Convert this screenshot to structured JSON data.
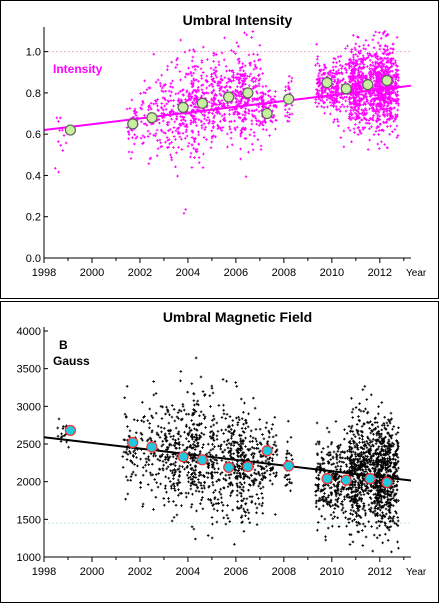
{
  "chart_data": [
    {
      "type": "scatter",
      "title": "Umbral Intensity",
      "annotation": "Intensity",
      "xunit_label": "Year",
      "xlim": [
        1998,
        2013.3
      ],
      "ylim": [
        0.0,
        1.1
      ],
      "xticks": [
        1998,
        2000,
        2002,
        2004,
        2006,
        2008,
        2010,
        2012
      ],
      "yticks": [
        0.0,
        0.2,
        0.4,
        0.6,
        0.8,
        1.0
      ],
      "ytick_labels": [
        "0.0",
        "0.2",
        "0.4",
        "0.6",
        "0.8",
        "1.0"
      ],
      "reference_line": 1.0,
      "colors": {
        "points": "#ff00ff",
        "fit": "#ff00ff",
        "means_fill": "#c8f0a0",
        "means_edge": "#606060",
        "reference": "#f0b0d0"
      },
      "fit": {
        "x": [
          1998,
          2013.3
        ],
        "y": [
          0.62,
          0.835
        ]
      },
      "clusters": [
        {
          "x": 1998.7,
          "y": 0.6,
          "spread": 0.06,
          "n": 12,
          "width": 0.3
        },
        {
          "x": 2001.7,
          "y": 0.65,
          "spread": 0.08,
          "n": 40,
          "width": 0.3
        },
        {
          "x": 2002.5,
          "y": 0.69,
          "spread": 0.1,
          "n": 70,
          "width": 0.6
        },
        {
          "x": 2003.6,
          "y": 0.72,
          "spread": 0.12,
          "n": 220,
          "width": 0.9
        },
        {
          "x": 2004.6,
          "y": 0.74,
          "spread": 0.12,
          "n": 160,
          "width": 0.6
        },
        {
          "x": 2005.7,
          "y": 0.79,
          "spread": 0.1,
          "n": 260,
          "width": 0.9
        },
        {
          "x": 2006.6,
          "y": 0.78,
          "spread": 0.1,
          "n": 180,
          "width": 0.7
        },
        {
          "x": 2007.4,
          "y": 0.72,
          "spread": 0.06,
          "n": 70,
          "width": 0.4
        },
        {
          "x": 2008.2,
          "y": 0.76,
          "spread": 0.06,
          "n": 30,
          "width": 0.2
        },
        {
          "x": 2009.8,
          "y": 0.83,
          "spread": 0.06,
          "n": 180,
          "width": 0.6
        },
        {
          "x": 2010.6,
          "y": 0.82,
          "spread": 0.09,
          "n": 180,
          "width": 0.7
        },
        {
          "x": 2011.6,
          "y": 0.83,
          "spread": 0.1,
          "n": 700,
          "width": 1.1
        },
        {
          "x": 2012.3,
          "y": 0.83,
          "spread": 0.1,
          "n": 350,
          "width": 0.6
        }
      ],
      "means": [
        {
          "x": 1999.1,
          "y": 0.62
        },
        {
          "x": 2001.7,
          "y": 0.65
        },
        {
          "x": 2002.5,
          "y": 0.68
        },
        {
          "x": 2003.8,
          "y": 0.73
        },
        {
          "x": 2004.6,
          "y": 0.75
        },
        {
          "x": 2005.7,
          "y": 0.78
        },
        {
          "x": 2006.5,
          "y": 0.8
        },
        {
          "x": 2007.3,
          "y": 0.7
        },
        {
          "x": 2008.2,
          "y": 0.77
        },
        {
          "x": 2009.8,
          "y": 0.85
        },
        {
          "x": 2010.6,
          "y": 0.82
        },
        {
          "x": 2011.5,
          "y": 0.84
        },
        {
          "x": 2012.3,
          "y": 0.86
        }
      ]
    },
    {
      "type": "scatter",
      "title": "Umbral Magnetic Field",
      "annotation": "B",
      "annotation_sub": "Gauss",
      "xunit_label": "Year",
      "xlim": [
        1998,
        2013.3
      ],
      "ylim": [
        1000,
        4000
      ],
      "xticks": [
        1998,
        2000,
        2002,
        2004,
        2006,
        2008,
        2010,
        2012
      ],
      "yticks": [
        1000,
        1500,
        2000,
        2500,
        3000,
        3500,
        4000
      ],
      "ytick_labels": [
        "1000",
        "1500",
        "2000",
        "2500",
        "3000",
        "3500",
        "4000"
      ],
      "reference_line": 1450,
      "colors": {
        "points": "#000000",
        "fit": "#000000",
        "means_fill": "#20c8e0",
        "means_edge": "#ff3030",
        "reference": "#bfe6ee"
      },
      "fit": {
        "x": [
          1998,
          2013.3
        ],
        "y": [
          2590,
          2015
        ]
      },
      "clusters": [
        {
          "x": 1998.8,
          "y": 2620,
          "spread": 120,
          "n": 15,
          "width": 0.3
        },
        {
          "x": 2001.6,
          "y": 2450,
          "spread": 300,
          "n": 60,
          "width": 0.4
        },
        {
          "x": 2002.5,
          "y": 2450,
          "spread": 350,
          "n": 90,
          "width": 0.6
        },
        {
          "x": 2003.7,
          "y": 2400,
          "spread": 400,
          "n": 240,
          "width": 0.9
        },
        {
          "x": 2004.6,
          "y": 2350,
          "spread": 380,
          "n": 150,
          "width": 0.6
        },
        {
          "x": 2005.7,
          "y": 2250,
          "spread": 400,
          "n": 260,
          "width": 0.9
        },
        {
          "x": 2006.6,
          "y": 2200,
          "spread": 380,
          "n": 170,
          "width": 0.7
        },
        {
          "x": 2007.4,
          "y": 2350,
          "spread": 300,
          "n": 70,
          "width": 0.4
        },
        {
          "x": 2008.2,
          "y": 2200,
          "spread": 200,
          "n": 30,
          "width": 0.2
        },
        {
          "x": 2009.8,
          "y": 2050,
          "spread": 280,
          "n": 180,
          "width": 0.6
        },
        {
          "x": 2010.6,
          "y": 2050,
          "spread": 320,
          "n": 180,
          "width": 0.7
        },
        {
          "x": 2011.6,
          "y": 2150,
          "spread": 380,
          "n": 700,
          "width": 1.1
        },
        {
          "x": 2012.3,
          "y": 2050,
          "spread": 330,
          "n": 350,
          "width": 0.6
        }
      ],
      "means": [
        {
          "x": 1999.1,
          "y": 2680
        },
        {
          "x": 2001.7,
          "y": 2520
        },
        {
          "x": 2002.5,
          "y": 2460
        },
        {
          "x": 2003.8,
          "y": 2330
        },
        {
          "x": 2004.6,
          "y": 2290
        },
        {
          "x": 2005.7,
          "y": 2190
        },
        {
          "x": 2006.5,
          "y": 2200
        },
        {
          "x": 2007.3,
          "y": 2410
        },
        {
          "x": 2008.2,
          "y": 2210
        },
        {
          "x": 2009.8,
          "y": 2040
        },
        {
          "x": 2010.6,
          "y": 2020
        },
        {
          "x": 2011.6,
          "y": 2040
        },
        {
          "x": 2012.3,
          "y": 1990
        }
      ]
    }
  ]
}
